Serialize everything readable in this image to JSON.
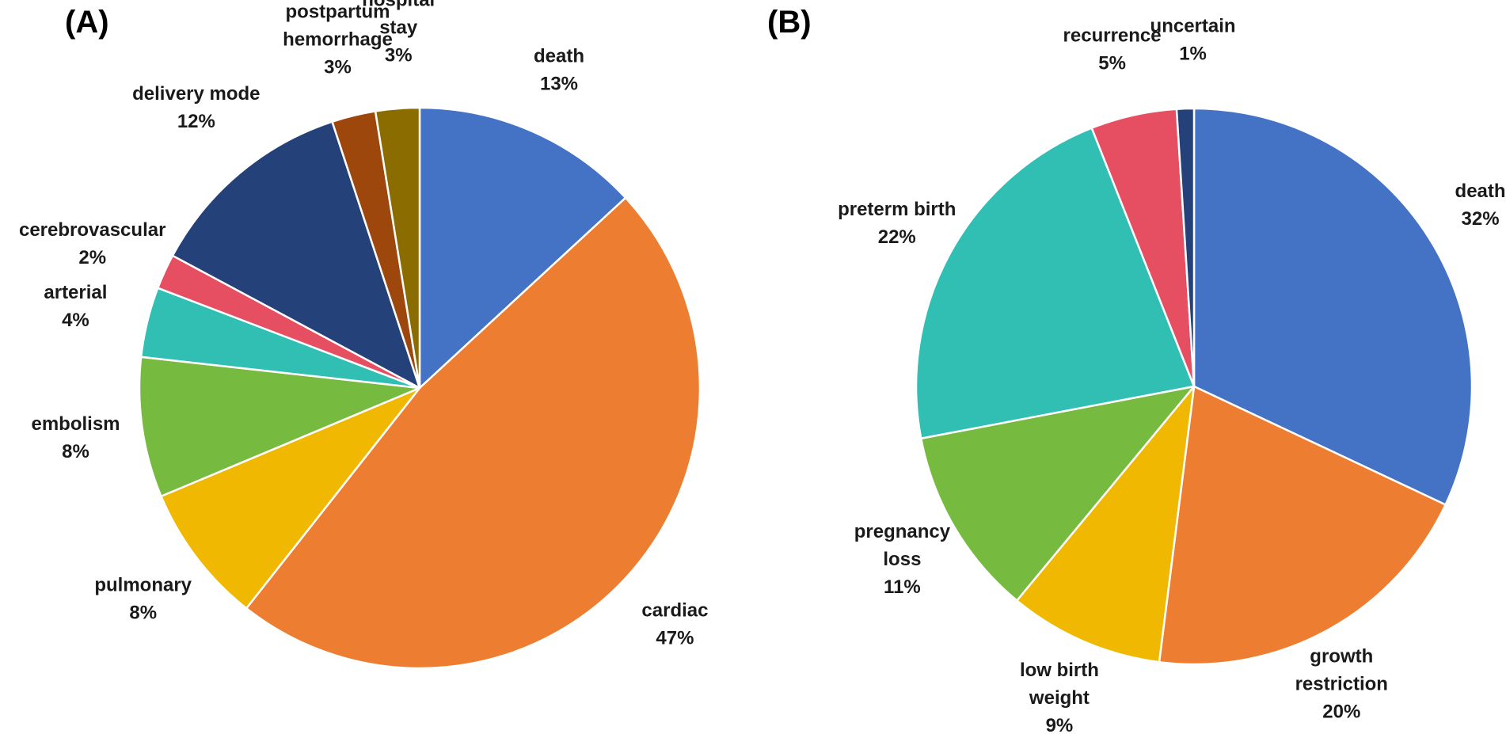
{
  "figure": {
    "panels": [
      "(A)",
      "(B)"
    ]
  },
  "chart_data": [
    {
      "type": "pie",
      "panel": "(A)",
      "title": "",
      "start": "top, clockwise",
      "slices": [
        {
          "label": "death",
          "label_lines": [
            "death"
          ],
          "value": 13,
          "pct": "13%",
          "color": "#4472C4"
        },
        {
          "label": "cardiac",
          "label_lines": [
            "cardiac"
          ],
          "value": 47,
          "pct": "47%",
          "color": "#ED7D31"
        },
        {
          "label": "pulmonary",
          "label_lines": [
            "pulmonary"
          ],
          "value": 8,
          "pct": "8%",
          "color": "#F0B800"
        },
        {
          "label": "embolism",
          "label_lines": [
            "embolism"
          ],
          "value": 8,
          "pct": "8%",
          "color": "#76BB40"
        },
        {
          "label": "arterial",
          "label_lines": [
            "arterial"
          ],
          "value": 4,
          "pct": "4%",
          "color": "#31BFB4"
        },
        {
          "label": "cerebrovascular",
          "label_lines": [
            "cerebrovascular"
          ],
          "value": 2,
          "pct": "2%",
          "color": "#E64E62"
        },
        {
          "label": "delivery mode",
          "label_lines": [
            "delivery mode"
          ],
          "value": 12,
          "pct": "12%",
          "color": "#25417A"
        },
        {
          "label": "postpartum hemorrhage",
          "label_lines": [
            "postpartum",
            "hemorrhage"
          ],
          "value": 2.5,
          "pct": "3%",
          "color": "#9E470D"
        },
        {
          "label": "hospital stay",
          "label_lines": [
            "hospital",
            "stay"
          ],
          "value": 2.5,
          "pct": "3%",
          "color": "#8B6C00"
        }
      ]
    },
    {
      "type": "pie",
      "panel": "(B)",
      "title": "",
      "start": "top, clockwise",
      "slices": [
        {
          "label": "death",
          "label_lines": [
            "death"
          ],
          "value": 32,
          "pct": "32%",
          "color": "#4472C4"
        },
        {
          "label": "growth restriction",
          "label_lines": [
            "growth",
            "restriction"
          ],
          "value": 20,
          "pct": "20%",
          "color": "#ED7D31"
        },
        {
          "label": "low birth weight",
          "label_lines": [
            "low birth",
            "weight"
          ],
          "value": 9,
          "pct": "9%",
          "color": "#F0B800"
        },
        {
          "label": "pregnancy loss",
          "label_lines": [
            "pregnancy",
            "loss"
          ],
          "value": 11,
          "pct": "11%",
          "color": "#76BB40"
        },
        {
          "label": "preterm birth",
          "label_lines": [
            "preterm birth"
          ],
          "value": 22,
          "pct": "22%",
          "color": "#31BFB4"
        },
        {
          "label": "recurrence",
          "label_lines": [
            "recurrence"
          ],
          "value": 5,
          "pct": "5%",
          "color": "#E64E62"
        },
        {
          "label": "uncertain",
          "label_lines": [
            "uncertain"
          ],
          "value": 1,
          "pct": "1%",
          "color": "#25417A"
        }
      ]
    }
  ]
}
